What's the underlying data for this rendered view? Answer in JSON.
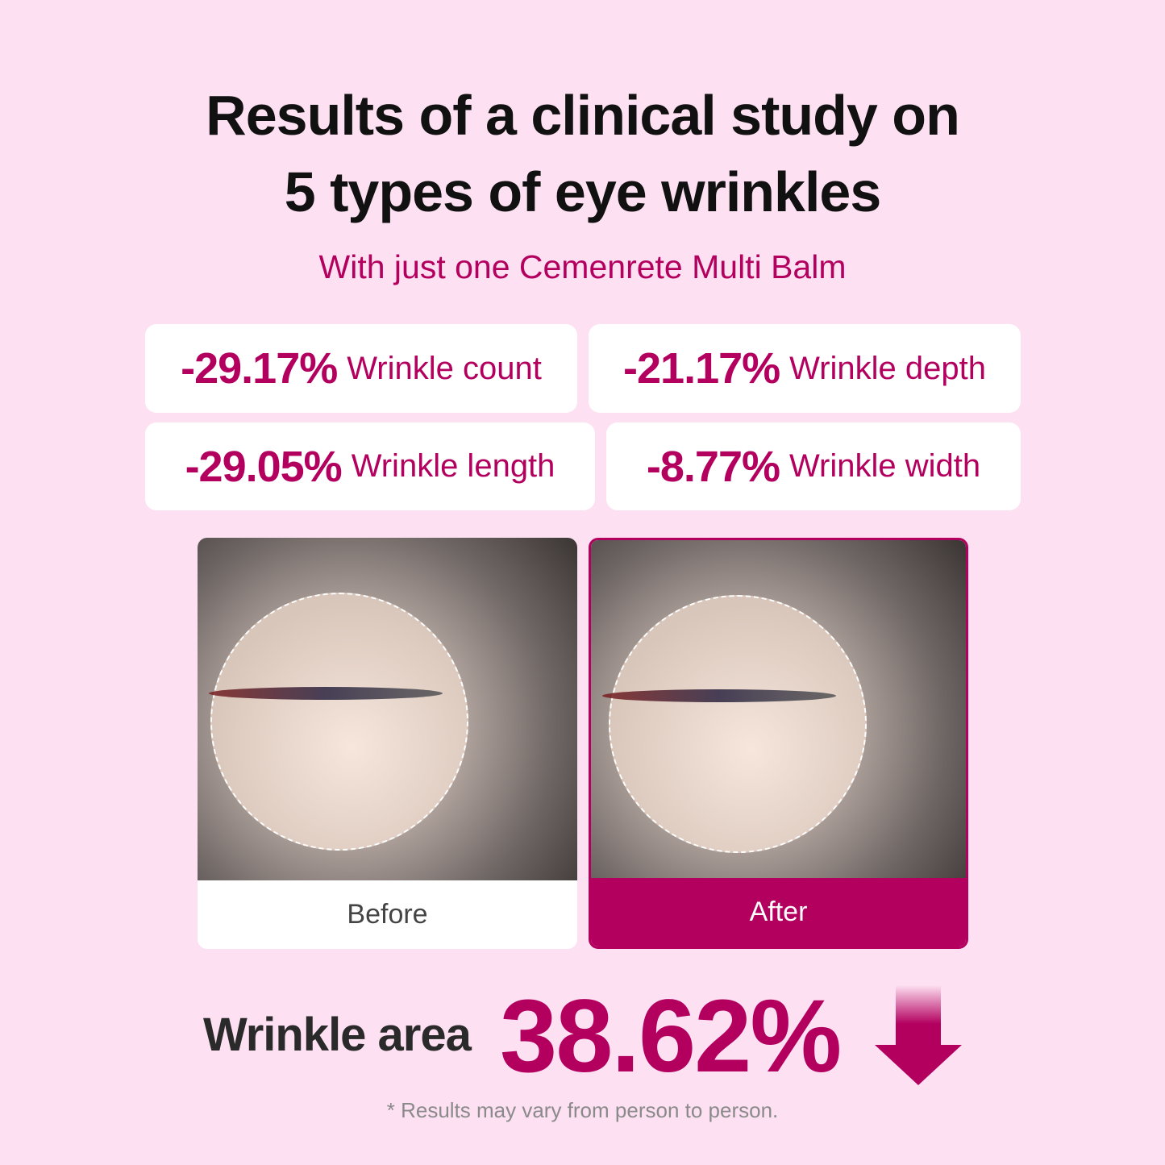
{
  "title": {
    "line1": "Results of a clinical study on",
    "line2": "5 types of eye wrinkles"
  },
  "subtitle": "With just one Cemenrete Multi Balm",
  "stats": [
    {
      "value": "-29.17%",
      "label": "Wrinkle count"
    },
    {
      "value": "-21.17%",
      "label": "Wrinkle depth"
    },
    {
      "value": "-29.05%",
      "label": "Wrinkle length"
    },
    {
      "value": "-8.77%",
      "label": "Wrinkle width"
    }
  ],
  "comparison": {
    "before": "Before",
    "after": "After"
  },
  "summary": {
    "label": "Wrinkle area",
    "value": "38.62%",
    "icon": "arrow-down-icon"
  },
  "footnote": "* Results may vary from person to person.",
  "colors": {
    "accent": "#b3005f",
    "background": "#fde0f1"
  }
}
